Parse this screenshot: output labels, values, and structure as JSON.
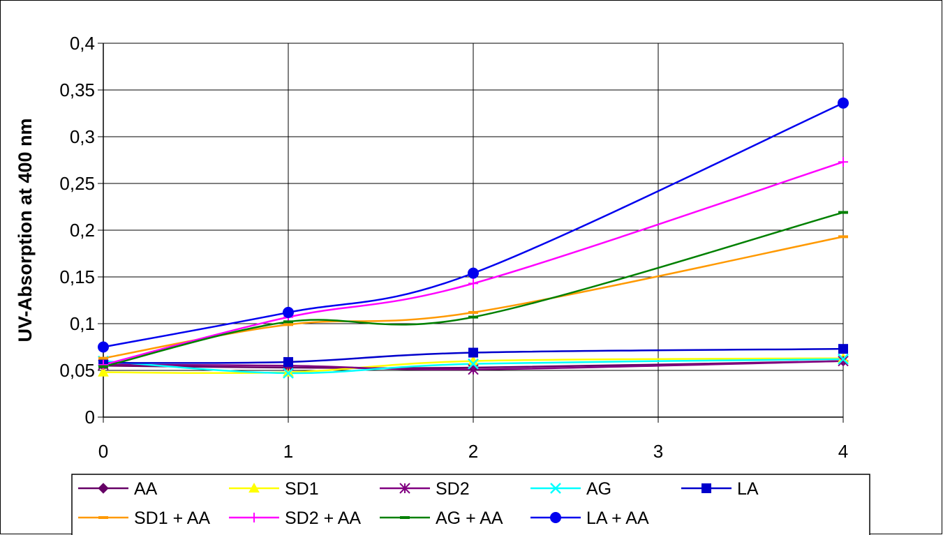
{
  "chart_data": {
    "type": "line",
    "title": "",
    "xlabel": "",
    "ylabel": "UV-Absorption at 400 nm",
    "x": [
      0,
      1,
      2,
      4
    ],
    "x_ticks": [
      "0",
      "1",
      "2",
      "3",
      "4"
    ],
    "y_ticks": [
      "0",
      "0,05",
      "0,1",
      "0,15",
      "0,2",
      "0,25",
      "0,3",
      "0,35",
      "0,4"
    ],
    "xlim": [
      0,
      4
    ],
    "ylim": [
      0,
      0.4
    ],
    "grid": true,
    "smooth": true,
    "legend_position": "bottom",
    "series": [
      {
        "name": "AA",
        "color": "#660066",
        "marker": "diamond",
        "values": [
          0.055,
          0.053,
          0.053,
          0.06
        ]
      },
      {
        "name": "SD1",
        "color": "#ffff00",
        "marker": "triangle",
        "values": [
          0.048,
          0.048,
          0.06,
          0.063
        ]
      },
      {
        "name": "SD2",
        "color": "#800080",
        "marker": "asterisk",
        "values": [
          0.056,
          0.055,
          0.051,
          0.06
        ]
      },
      {
        "name": "AG",
        "color": "#00ffff",
        "marker": "x",
        "values": [
          0.06,
          0.047,
          0.057,
          0.062
        ]
      },
      {
        "name": "LA",
        "color": "#0000cc",
        "marker": "square",
        "values": [
          0.058,
          0.059,
          0.069,
          0.073
        ]
      },
      {
        "name": "SD1 + AA",
        "color": "#ff9900",
        "marker": "dash",
        "values": [
          0.063,
          0.099,
          0.112,
          0.193
        ]
      },
      {
        "name": "SD2 + AA",
        "color": "#ff00ff",
        "marker": "plus",
        "values": [
          0.056,
          0.107,
          0.143,
          0.273
        ]
      },
      {
        "name": "AG + AA",
        "color": "#008000",
        "marker": "dash",
        "values": [
          0.054,
          0.102,
          0.107,
          0.219
        ]
      },
      {
        "name": "LA + AA",
        "color": "#0000ee",
        "marker": "circle",
        "values": [
          0.075,
          0.112,
          0.154,
          0.336
        ]
      }
    ]
  }
}
